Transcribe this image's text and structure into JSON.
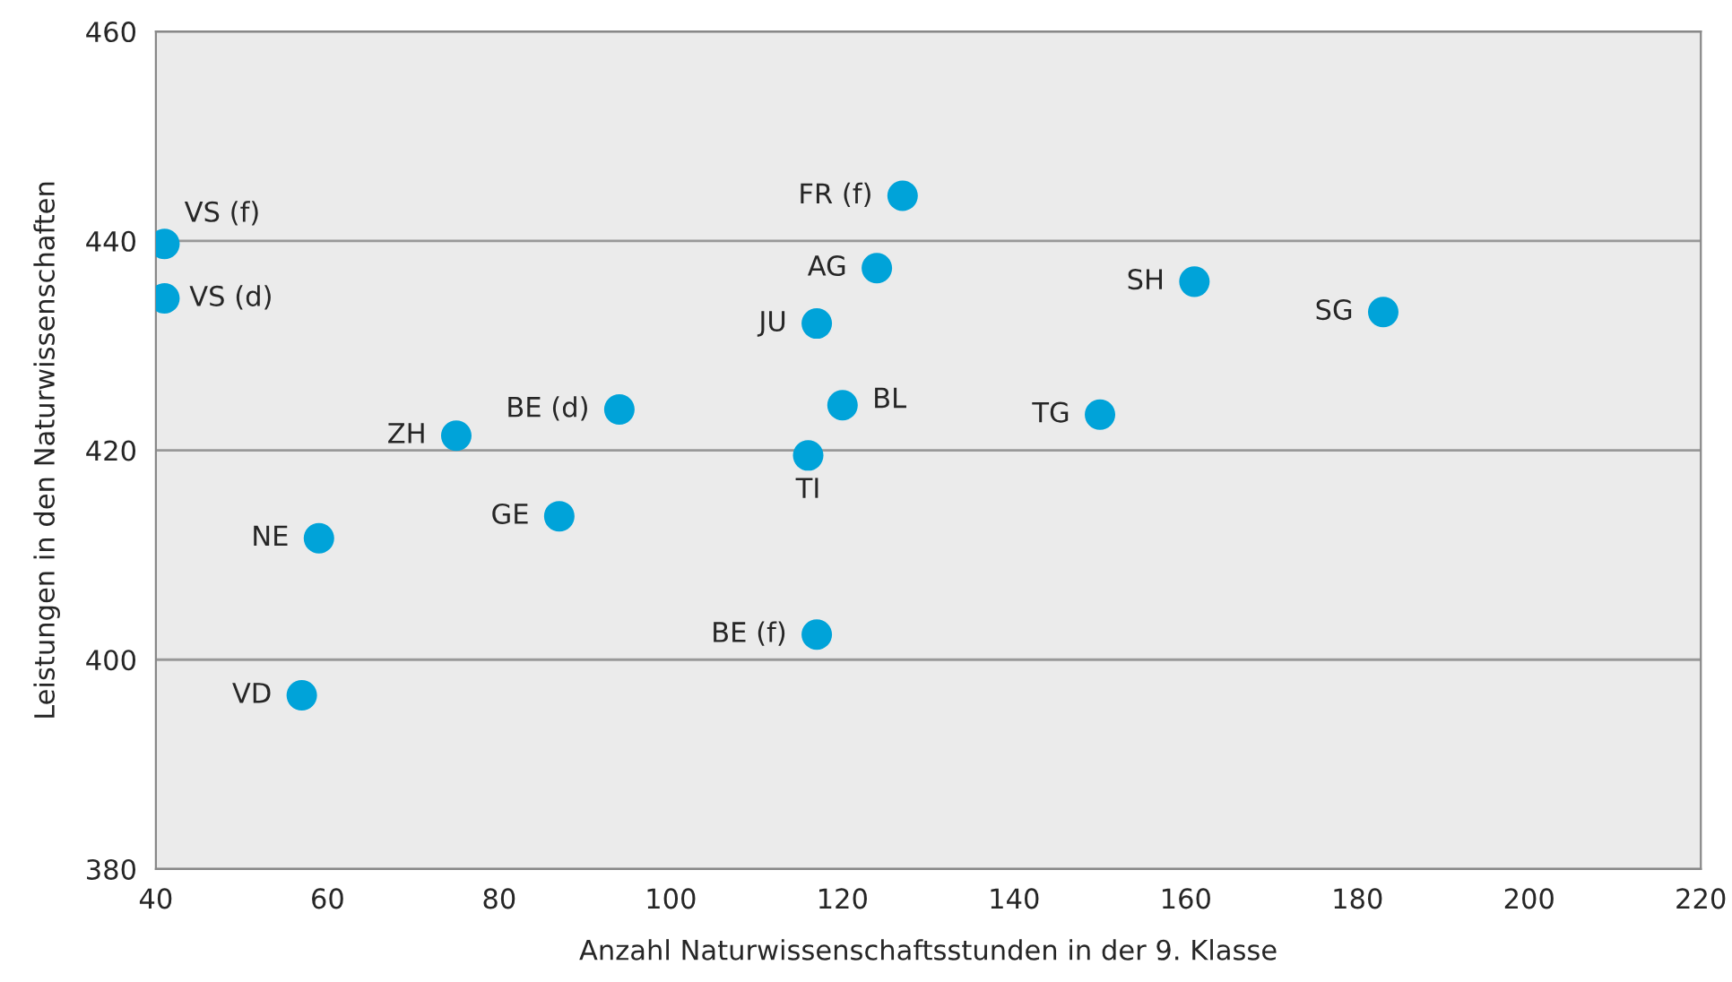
{
  "chart_data": {
    "type": "scatter",
    "xlabel": "Anzahl Naturwissenschaftsstunden in der 9. Klasse",
    "ylabel": "Leistungen in den Naturwissenschaften",
    "series": [
      {
        "color": "#00a3d9",
        "x": [
          41,
          41,
          75,
          94,
          87,
          59,
          57,
          117,
          116,
          120,
          117,
          124,
          127,
          150,
          161,
          183
        ],
        "values": [
          439.7,
          434.5,
          421.4,
          423.9,
          413.7,
          411.6,
          396.6,
          402.4,
          419.5,
          424.3,
          432.1,
          437.4,
          444.3,
          423.4,
          436.1,
          433.2
        ]
      }
    ],
    "annotations": [
      {
        "text": "VS (f)",
        "x": 41,
        "y": 439.7
      },
      {
        "text": "VS (d)",
        "x": 41,
        "y": 434.5
      },
      {
        "text": "ZH",
        "x": 75,
        "y": 421.4
      },
      {
        "text": "BE (d)",
        "x": 94,
        "y": 423.9
      },
      {
        "text": "GE",
        "x": 87,
        "y": 413.7
      },
      {
        "text": "NE",
        "x": 59,
        "y": 411.6
      },
      {
        "text": "VD",
        "x": 57,
        "y": 396.6
      },
      {
        "text": "BE (f)",
        "x": 117,
        "y": 402.4
      },
      {
        "text": "TI",
        "x": 116,
        "y": 419.5
      },
      {
        "text": "BL",
        "x": 120,
        "y": 424.3
      },
      {
        "text": "JU",
        "x": 117,
        "y": 432.1
      },
      {
        "text": "AG",
        "x": 124,
        "y": 437.4
      },
      {
        "text": "FR (f)",
        "x": 127,
        "y": 444.3
      },
      {
        "text": "TG",
        "x": 150,
        "y": 423.4
      },
      {
        "text": "SH",
        "x": 161,
        "y": 436.1
      },
      {
        "text": "SG",
        "x": 183,
        "y": 433.2
      }
    ],
    "xlim": [
      40,
      220
    ],
    "xticks": [
      40,
      60,
      80,
      100,
      120,
      140,
      160,
      180,
      200,
      220
    ],
    "ylim": [
      380,
      460
    ],
    "yticks": [
      380,
      400,
      420,
      440,
      460
    ],
    "grid": "y",
    "marker": "circle",
    "legend": false
  }
}
